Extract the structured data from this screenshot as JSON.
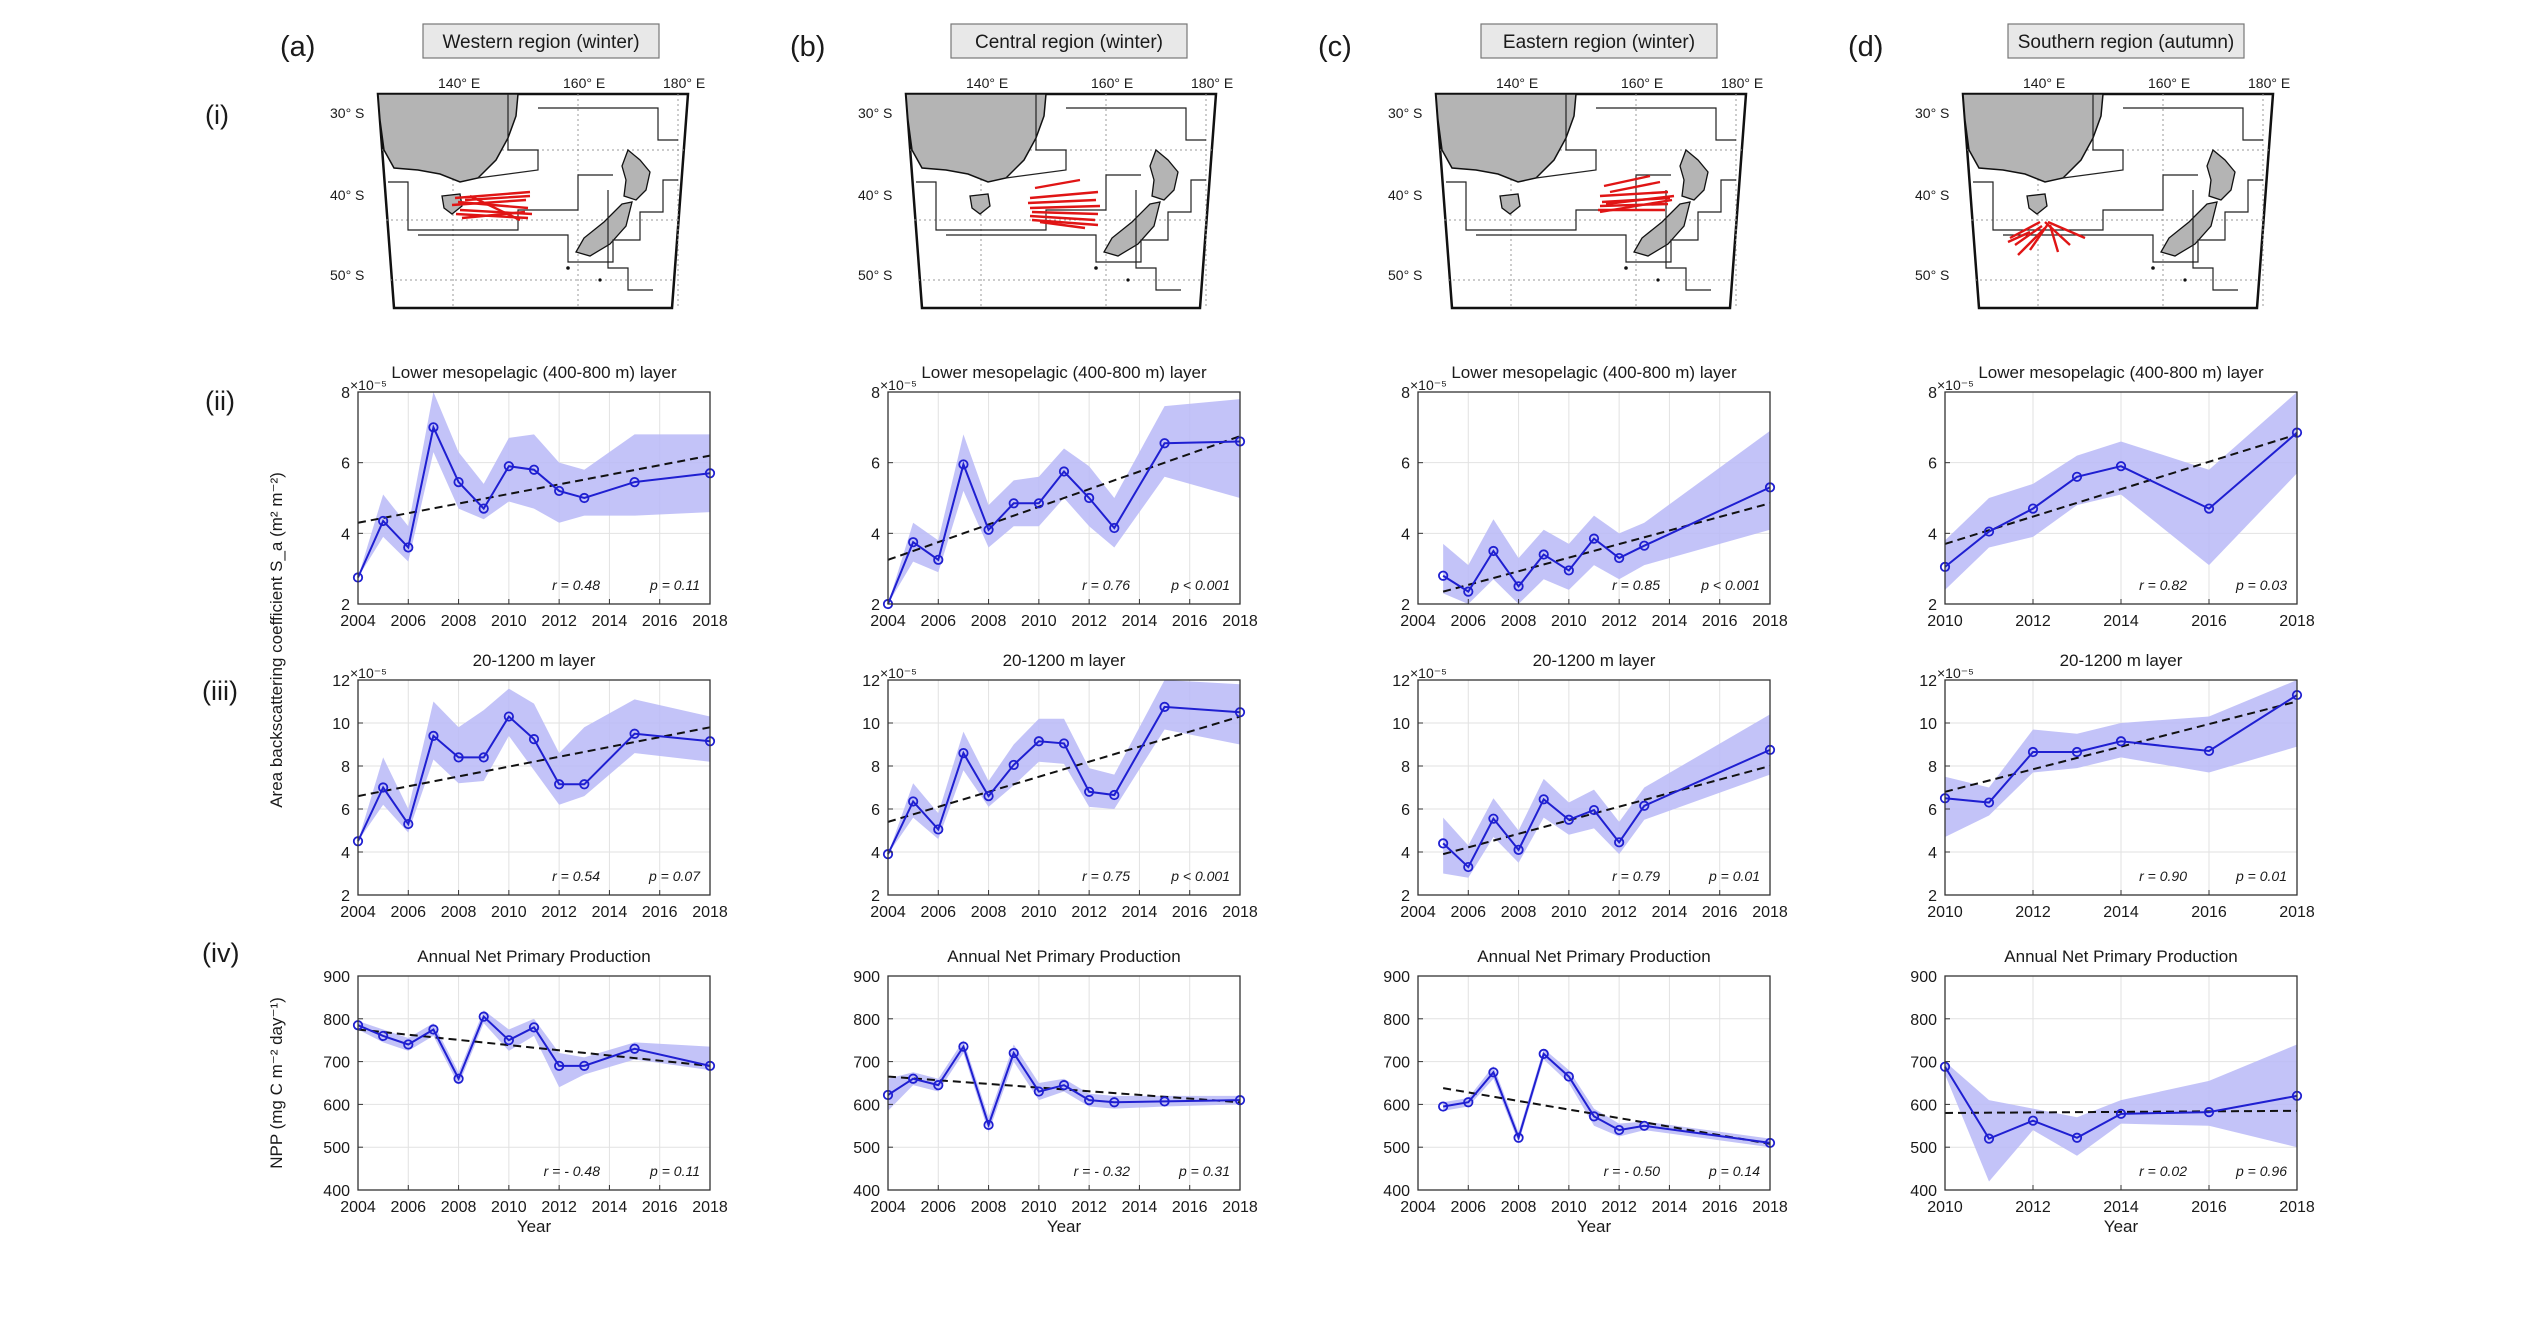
{
  "columns": [
    {
      "letter": "(a)",
      "region": "Western region (winter)"
    },
    {
      "letter": "(b)",
      "region": "Central region (winter)"
    },
    {
      "letter": "(c)",
      "region": "Eastern region (winter)"
    },
    {
      "letter": "(d)",
      "region": "Southern region (autumn)"
    }
  ],
  "rows": [
    "(i)",
    "(ii)",
    "(iii)",
    "(iv)"
  ],
  "map": {
    "lon_labels": [
      "140° E",
      "160° E",
      "180° E"
    ],
    "lat_labels": [
      "30° S",
      "40° S",
      "50° S"
    ]
  },
  "y_label_sa": "Area backscattering coefficient S_a (m² m⁻²)",
  "y_label_npp": "NPP (mg C m⁻² day⁻¹)",
  "colors": {
    "line": "#1f1fd1",
    "band": "#b9b9f7",
    "trend": "#111111",
    "stat": "#e0201f",
    "land": "#b4b4b4",
    "tracks": "#e01515",
    "title_box": "#e8e8e8",
    "title_text": "#2e8b2e"
  },
  "chart_data": [
    {
      "type": "line",
      "row": "ii",
      "col": 0,
      "title": "Lower mesopelagic (400-800 m) layer",
      "exponent": "×10⁻⁵",
      "xlabel": "",
      "ylim": [
        2,
        8
      ],
      "yticks": [
        2,
        4,
        6,
        8
      ],
      "xlim": [
        2004,
        2018
      ],
      "xticks": [
        2004,
        2006,
        2008,
        2010,
        2012,
        2014,
        2016,
        2018
      ],
      "x": [
        2004,
        2005,
        2006,
        2007,
        2008,
        2009,
        2010,
        2011,
        2012,
        2013,
        2015,
        2018
      ],
      "y": [
        2.75,
        4.35,
        3.6,
        7.0,
        5.45,
        4.7,
        5.9,
        5.8,
        5.2,
        5.0,
        5.45,
        5.7
      ],
      "upper": [
        2.75,
        5.1,
        4.2,
        8.0,
        6.3,
        5.4,
        6.7,
        6.8,
        6.0,
        5.8,
        6.8,
        6.8
      ],
      "lower": [
        2.75,
        3.9,
        3.2,
        6.3,
        4.7,
        4.4,
        4.9,
        4.7,
        4.3,
        4.5,
        4.5,
        4.6
      ],
      "trend": [
        [
          2004,
          4.3
        ],
        [
          2018,
          6.2
        ]
      ],
      "r": "r = 0.48",
      "p": "p = 0.11"
    },
    {
      "type": "line",
      "row": "ii",
      "col": 1,
      "title": "Lower mesopelagic (400-800 m) layer",
      "exponent": "×10⁻⁵",
      "xlabel": "",
      "ylim": [
        2,
        8
      ],
      "yticks": [
        2,
        4,
        6,
        8
      ],
      "xlim": [
        2004,
        2018
      ],
      "xticks": [
        2004,
        2006,
        2008,
        2010,
        2012,
        2014,
        2016,
        2018
      ],
      "x": [
        2004,
        2005,
        2006,
        2007,
        2008,
        2009,
        2010,
        2011,
        2012,
        2013,
        2015,
        2018
      ],
      "y": [
        2.0,
        3.75,
        3.25,
        5.95,
        4.1,
        4.85,
        4.85,
        5.75,
        5.0,
        4.15,
        6.55,
        6.6
      ],
      "upper": [
        2.0,
        4.3,
        3.8,
        6.8,
        4.8,
        5.5,
        5.6,
        6.4,
        5.9,
        5.0,
        7.6,
        7.8
      ],
      "lower": [
        2.0,
        3.2,
        2.9,
        5.2,
        3.6,
        4.2,
        4.2,
        5.0,
        4.2,
        3.6,
        5.6,
        5.0
      ],
      "trend": [
        [
          2004,
          3.25
        ],
        [
          2018,
          6.75
        ]
      ],
      "r": "r = 0.76",
      "p": "p < 0.001"
    },
    {
      "type": "line",
      "row": "ii",
      "col": 2,
      "title": "Lower mesopelagic (400-800 m) layer",
      "exponent": "×10⁻⁵",
      "xlabel": "",
      "ylim": [
        2,
        8
      ],
      "yticks": [
        2,
        4,
        6,
        8
      ],
      "xlim": [
        2004,
        2018
      ],
      "xticks": [
        2004,
        2006,
        2008,
        2010,
        2012,
        2014,
        2016,
        2018
      ],
      "x": [
        2005,
        2006,
        2007,
        2008,
        2009,
        2010,
        2011,
        2012,
        2013,
        2018
      ],
      "y": [
        2.8,
        2.35,
        3.5,
        2.5,
        3.4,
        2.95,
        3.85,
        3.3,
        3.65,
        5.3
      ],
      "upper": [
        3.7,
        3.1,
        4.4,
        3.3,
        4.1,
        3.7,
        4.5,
        4.0,
        4.3,
        6.9
      ],
      "lower": [
        2.3,
        2.0,
        2.7,
        2.0,
        2.7,
        2.4,
        3.1,
        2.7,
        3.1,
        4.1
      ],
      "trend": [
        [
          2005,
          2.35
        ],
        [
          2018,
          4.85
        ]
      ],
      "r": "r = 0.85",
      "p": "p < 0.001"
    },
    {
      "type": "line",
      "row": "ii",
      "col": 3,
      "title": "Lower mesopelagic (400-800 m) layer",
      "exponent": "×10⁻⁵",
      "xlabel": "",
      "ylim": [
        2,
        8
      ],
      "yticks": [
        2,
        4,
        6,
        8
      ],
      "xlim": [
        2010,
        2018
      ],
      "xticks": [
        2010,
        2012,
        2014,
        2016,
        2018
      ],
      "x": [
        2010,
        2011,
        2012,
        2013,
        2014,
        2016,
        2018
      ],
      "y": [
        3.05,
        4.05,
        4.7,
        5.6,
        5.9,
        4.7,
        6.85
      ],
      "upper": [
        3.8,
        5.0,
        5.4,
        6.2,
        6.6,
        5.8,
        8.0
      ],
      "lower": [
        2.4,
        3.6,
        3.9,
        4.8,
        5.1,
        3.1,
        5.7
      ],
      "trend": [
        [
          2010,
          3.7
        ],
        [
          2018,
          6.8
        ]
      ],
      "r": "r = 0.82",
      "p": "p = 0.03"
    },
    {
      "type": "line",
      "row": "iii",
      "col": 0,
      "title": "20-1200 m layer",
      "exponent": "×10⁻⁵",
      "xlabel": "",
      "ylim": [
        2,
        12
      ],
      "yticks": [
        2,
        4,
        6,
        8,
        10,
        12
      ],
      "xlim": [
        2004,
        2018
      ],
      "xticks": [
        2004,
        2006,
        2008,
        2010,
        2012,
        2014,
        2016,
        2018
      ],
      "x": [
        2004,
        2005,
        2006,
        2007,
        2008,
        2009,
        2010,
        2011,
        2012,
        2013,
        2015,
        2018
      ],
      "y": [
        4.5,
        7.0,
        5.3,
        9.4,
        8.4,
        8.4,
        10.3,
        9.25,
        7.15,
        7.15,
        9.5,
        9.15
      ],
      "upper": [
        4.5,
        8.4,
        6.0,
        11.0,
        9.8,
        10.6,
        11.6,
        10.9,
        8.6,
        9.8,
        11.1,
        10.3
      ],
      "lower": [
        4.5,
        6.2,
        4.9,
        8.3,
        7.2,
        7.3,
        9.4,
        7.8,
        6.2,
        6.6,
        8.6,
        8.2
      ],
      "trend": [
        [
          2004,
          6.6
        ],
        [
          2018,
          9.8
        ]
      ],
      "r": "r = 0.54",
      "p": "p = 0.07"
    },
    {
      "type": "line",
      "row": "iii",
      "col": 1,
      "title": "20-1200 m layer",
      "exponent": "×10⁻⁵",
      "xlabel": "",
      "ylim": [
        2,
        12
      ],
      "yticks": [
        2,
        4,
        6,
        8,
        10,
        12
      ],
      "xlim": [
        2004,
        2018
      ],
      "xticks": [
        2004,
        2006,
        2008,
        2010,
        2012,
        2014,
        2016,
        2018
      ],
      "x": [
        2004,
        2005,
        2006,
        2007,
        2008,
        2009,
        2010,
        2011,
        2012,
        2013,
        2015,
        2018
      ],
      "y": [
        3.9,
        6.35,
        5.05,
        8.6,
        6.6,
        8.05,
        9.15,
        9.05,
        6.8,
        6.65,
        10.75,
        10.5
      ],
      "upper": [
        3.9,
        7.2,
        5.8,
        9.6,
        7.3,
        9.0,
        10.2,
        10.2,
        7.9,
        7.6,
        12.0,
        11.8
      ],
      "lower": [
        3.9,
        5.6,
        4.6,
        7.8,
        6.1,
        7.1,
        8.2,
        8.1,
        6.1,
        6.0,
        9.7,
        9.0
      ],
      "trend": [
        [
          2004,
          5.4
        ],
        [
          2018,
          10.3
        ]
      ],
      "r": "r = 0.75",
      "p": "p < 0.001"
    },
    {
      "type": "line",
      "row": "iii",
      "col": 2,
      "title": "20-1200 m layer",
      "exponent": "×10⁻⁵",
      "xlabel": "",
      "ylim": [
        2,
        12
      ],
      "yticks": [
        2,
        4,
        6,
        8,
        10,
        12
      ],
      "xlim": [
        2004,
        2018
      ],
      "xticks": [
        2004,
        2006,
        2008,
        2010,
        2012,
        2014,
        2016,
        2018
      ],
      "x": [
        2005,
        2006,
        2007,
        2008,
        2009,
        2010,
        2011,
        2012,
        2013,
        2018
      ],
      "y": [
        4.4,
        3.3,
        5.55,
        4.1,
        6.45,
        5.5,
        5.95,
        4.45,
        6.15,
        8.75
      ],
      "upper": [
        5.6,
        4.3,
        6.5,
        5.0,
        7.4,
        6.3,
        6.9,
        5.4,
        7.0,
        10.4
      ],
      "lower": [
        3.0,
        2.8,
        4.7,
        3.5,
        5.6,
        4.8,
        5.1,
        3.9,
        5.5,
        7.6
      ],
      "trend": [
        [
          2005,
          3.9
        ],
        [
          2018,
          8.0
        ]
      ],
      "r": "r = 0.79",
      "p": "p = 0.01"
    },
    {
      "type": "line",
      "row": "iii",
      "col": 3,
      "title": "20-1200 m layer",
      "exponent": "×10⁻⁵",
      "xlabel": "",
      "ylim": [
        2,
        12
      ],
      "yticks": [
        2,
        4,
        6,
        8,
        10,
        12
      ],
      "xlim": [
        2010,
        2018
      ],
      "xticks": [
        2010,
        2012,
        2014,
        2016,
        2018
      ],
      "x": [
        2010,
        2011,
        2012,
        2013,
        2014,
        2016,
        2018
      ],
      "y": [
        6.5,
        6.3,
        8.65,
        8.65,
        9.15,
        8.7,
        11.3
      ],
      "upper": [
        7.5,
        7.0,
        9.7,
        9.5,
        10.0,
        10.3,
        12.0
      ],
      "lower": [
        4.7,
        5.7,
        7.7,
        7.9,
        8.4,
        7.7,
        8.9
      ],
      "trend": [
        [
          2010,
          6.8
        ],
        [
          2018,
          11.0
        ]
      ],
      "r": "r = 0.90",
      "p": "p = 0.01"
    },
    {
      "type": "line",
      "row": "iv",
      "col": 0,
      "title": "Annual Net Primary Production",
      "exponent": "",
      "xlabel": "Year",
      "ylim": [
        400,
        900
      ],
      "yticks": [
        400,
        500,
        600,
        700,
        800,
        900
      ],
      "xlim": [
        2004,
        2018
      ],
      "xticks": [
        2004,
        2006,
        2008,
        2010,
        2012,
        2014,
        2016,
        2018
      ],
      "x": [
        2004,
        2005,
        2006,
        2007,
        2008,
        2009,
        2010,
        2011,
        2012,
        2013,
        2015,
        2018
      ],
      "y": [
        785,
        760,
        740,
        775,
        660,
        805,
        750,
        780,
        690,
        690,
        730,
        690
      ],
      "upper": [
        795,
        775,
        755,
        790,
        675,
        820,
        775,
        800,
        720,
        710,
        745,
        735
      ],
      "lower": [
        775,
        745,
        725,
        760,
        645,
        790,
        725,
        760,
        640,
        670,
        705,
        680
      ],
      "trend": [
        [
          2004,
          775
        ],
        [
          2018,
          690
        ]
      ],
      "r": "r = - 0.48",
      "p": "p = 0.11"
    },
    {
      "type": "line",
      "row": "iv",
      "col": 1,
      "title": "Annual Net Primary Production",
      "exponent": "",
      "xlabel": "Year",
      "ylim": [
        400,
        900
      ],
      "yticks": [
        400,
        500,
        600,
        700,
        800,
        900
      ],
      "xlim": [
        2004,
        2018
      ],
      "xticks": [
        2004,
        2006,
        2008,
        2010,
        2012,
        2014,
        2016,
        2018
      ],
      "x": [
        2004,
        2005,
        2006,
        2007,
        2008,
        2009,
        2010,
        2011,
        2012,
        2013,
        2015,
        2018
      ],
      "y": [
        622,
        660,
        645,
        735,
        552,
        720,
        630,
        645,
        610,
        605,
        607,
        610
      ],
      "upper": [
        660,
        675,
        660,
        750,
        570,
        740,
        650,
        660,
        625,
        620,
        620,
        620
      ],
      "lower": [
        585,
        645,
        630,
        720,
        535,
        700,
        610,
        630,
        595,
        590,
        595,
        600
      ],
      "trend": [
        [
          2004,
          665
        ],
        [
          2018,
          605
        ]
      ],
      "r": "r = - 0.32",
      "p": "p = 0.31"
    },
    {
      "type": "line",
      "row": "iv",
      "col": 2,
      "title": "Annual Net Primary Production",
      "exponent": "",
      "xlabel": "Year",
      "ylim": [
        400,
        900
      ],
      "yticks": [
        400,
        500,
        600,
        700,
        800,
        900
      ],
      "xlim": [
        2004,
        2018
      ],
      "xticks": [
        2004,
        2006,
        2008,
        2010,
        2012,
        2014,
        2016,
        2018
      ],
      "x": [
        2005,
        2006,
        2007,
        2008,
        2009,
        2010,
        2011,
        2012,
        2013,
        2018
      ],
      "y": [
        595,
        605,
        675,
        522,
        718,
        665,
        572,
        540,
        550,
        510
      ],
      "upper": [
        605,
        615,
        690,
        535,
        730,
        680,
        590,
        555,
        560,
        520
      ],
      "lower": [
        585,
        595,
        660,
        510,
        705,
        650,
        550,
        525,
        540,
        500
      ],
      "trend": [
        [
          2005,
          638
        ],
        [
          2018,
          508
        ]
      ],
      "r": "r = - 0.50",
      "p": "p = 0.14"
    },
    {
      "type": "line",
      "row": "iv",
      "col": 3,
      "title": "Annual Net Primary Production",
      "exponent": "",
      "xlabel": "Year",
      "ylim": [
        400,
        900
      ],
      "yticks": [
        400,
        500,
        600,
        700,
        800,
        900
      ],
      "xlim": [
        2010,
        2018
      ],
      "xticks": [
        2010,
        2012,
        2014,
        2016,
        2018
      ],
      "x": [
        2010,
        2011,
        2012,
        2013,
        2014,
        2016,
        2018
      ],
      "y": [
        688,
        520,
        562,
        522,
        578,
        582,
        620
      ],
      "upper": [
        700,
        610,
        590,
        570,
        610,
        655,
        740
      ],
      "lower": [
        670,
        420,
        540,
        480,
        555,
        550,
        500
      ],
      "trend": [
        [
          2010,
          580
        ],
        [
          2018,
          585
        ]
      ],
      "r": "r = 0.02",
      "p": "p = 0.96"
    }
  ]
}
